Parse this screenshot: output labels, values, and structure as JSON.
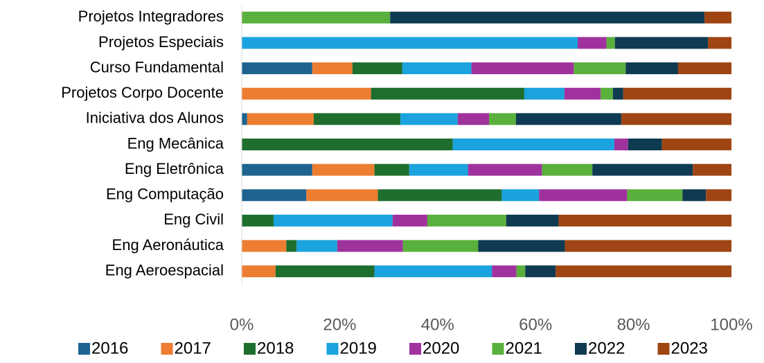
{
  "chart_data": {
    "type": "stacked-bar-horizontal",
    "categories": [
      "Projetos Integradores",
      "Projetos Especiais",
      "Curso Fundamental",
      "Projetos Corpo Docente",
      "Iniciativa dos Alunos",
      "Eng Mecânica",
      "Eng Eletrônica",
      "Eng Computação",
      "Eng Civil",
      "Eng Aeronáutica",
      "Eng Aeroespacial"
    ],
    "series": [
      {
        "name": "2016",
        "color": "#1f6391",
        "values": [
          0,
          0,
          14.4,
          0,
          1.1,
          0,
          14.4,
          13.2,
          0,
          0,
          0
        ]
      },
      {
        "name": "2017",
        "color": "#ed7d31",
        "values": [
          0,
          0,
          8.2,
          26.4,
          13.6,
          0,
          12.7,
          14.6,
          0,
          9.1,
          6.9
        ]
      },
      {
        "name": "2018",
        "color": "#1e6e2e",
        "values": [
          0,
          0,
          10.2,
          31.3,
          17.7,
          43.1,
          7.1,
          25.3,
          6.5,
          2.1,
          20.2
        ]
      },
      {
        "name": "2019",
        "color": "#1aa3de",
        "values": [
          0,
          68.6,
          14.1,
          8.2,
          11.7,
          33.0,
          12.0,
          7.6,
          24.3,
          8.3,
          24.0
        ]
      },
      {
        "name": "2020",
        "color": "#a0329e",
        "values": [
          0,
          5.9,
          20.9,
          7.4,
          6.4,
          2.8,
          15.1,
          18.0,
          7.1,
          13.4,
          5.0
        ]
      },
      {
        "name": "2021",
        "color": "#5ab03c",
        "values": [
          30.3,
          1.7,
          10.6,
          2.5,
          5.5,
          0,
          10.3,
          11.3,
          16.1,
          15.4,
          1.8
        ]
      },
      {
        "name": "2022",
        "color": "#0e3a52",
        "values": [
          64.2,
          19.0,
          10.7,
          2.1,
          21.5,
          6.9,
          20.5,
          4.8,
          10.7,
          17.7,
          6.2
        ]
      },
      {
        "name": "2023",
        "color": "#9e4513",
        "values": [
          5.5,
          4.8,
          10.9,
          22.1,
          22.5,
          14.2,
          7.9,
          5.2,
          35.3,
          34.0,
          35.9
        ]
      }
    ],
    "xlim": [
      0,
      100
    ],
    "xticks": [
      {
        "value": 0,
        "label": "0%"
      },
      {
        "value": 20,
        "label": "20%"
      },
      {
        "value": 40,
        "label": "40%"
      },
      {
        "value": 60,
        "label": "60%"
      },
      {
        "value": 80,
        "label": "80%"
      },
      {
        "value": 100,
        "label": "100%"
      }
    ],
    "legend": "bottom"
  }
}
